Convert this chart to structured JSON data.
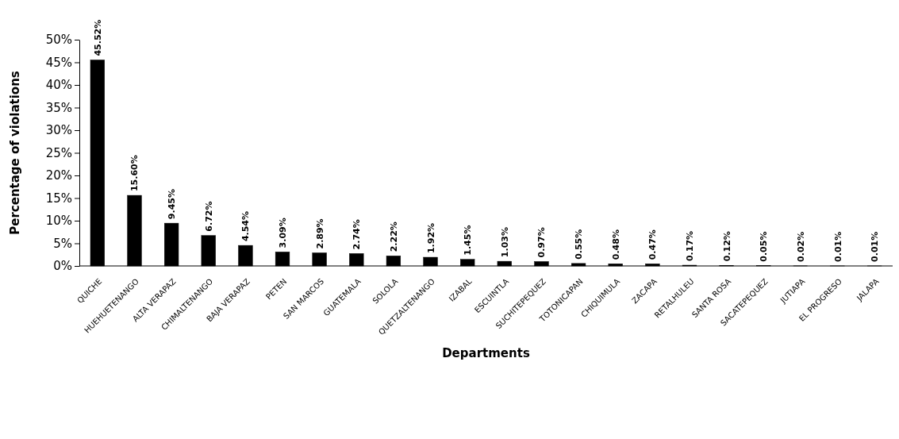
{
  "chart_data": {
    "type": "bar",
    "xlabel": "Departments",
    "ylabel": "Percentage of violations",
    "categories": [
      "QUICHE",
      "HUEHUETENANGO",
      "ALTA VERAPAZ",
      "CHIMALTENANGO",
      "BAJA VERAPAZ",
      "PETEN",
      "SAN MARCOS",
      "GUATEMALA",
      "SOLOLA",
      "QUETZALTENANGO",
      "IZABAL",
      "ESCUINTLA",
      "SUCHITEPEQUEZ",
      "TOTONICAPAN",
      "CHIQUIMULA",
      "ZACAPA",
      "RETALHULEU",
      "SANTA ROSA",
      "SACATEPEQUEZ",
      "JUTIAPA",
      "EL PROGRESO",
      "JALAPA"
    ],
    "values": [
      45.52,
      15.6,
      9.45,
      6.72,
      4.54,
      3.09,
      2.89,
      2.74,
      2.22,
      1.92,
      1.45,
      1.03,
      0.97,
      0.55,
      0.48,
      0.47,
      0.17,
      0.12,
      0.05,
      0.02,
      0.01,
      0.01
    ],
    "value_labels": [
      "45.52%",
      "15.60%",
      "9.45%",
      "6.72%",
      "4.54%",
      "3.09%",
      "2.89%",
      "2.74%",
      "2.22%",
      "1.92%",
      "1.45%",
      "1.03%",
      "0.97%",
      "0.55%",
      "0.48%",
      "0.47%",
      "0.17%",
      "0.12%",
      "0.05%",
      "0.02%",
      "0.01%",
      "0.01%"
    ],
    "color": "#000000",
    "ylim": [
      0,
      50
    ],
    "yticks": [
      {
        "value": 0,
        "label": "0%"
      },
      {
        "value": 5,
        "label": "5%"
      },
      {
        "value": 10,
        "label": "10%"
      },
      {
        "value": 15,
        "label": "15%"
      },
      {
        "value": 20,
        "label": "20%"
      },
      {
        "value": 25,
        "label": "25%"
      },
      {
        "value": 30,
        "label": "30%"
      },
      {
        "value": 35,
        "label": "35%"
      },
      {
        "value": 40,
        "label": "40%"
      },
      {
        "value": 45,
        "label": "45%"
      },
      {
        "value": 50,
        "label": "50%"
      }
    ],
    "grid": false
  }
}
